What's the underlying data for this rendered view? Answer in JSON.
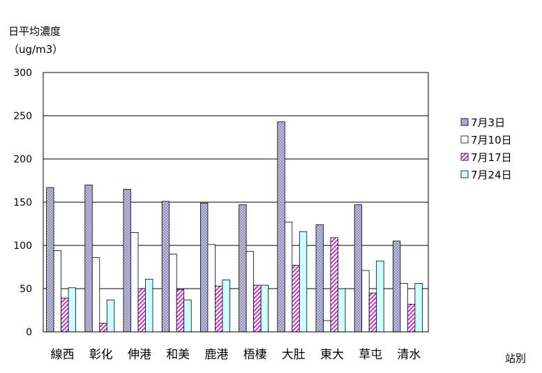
{
  "chart_data": {
    "type": "bar",
    "title": "",
    "ylabel": "日平均濃度",
    "yunit": "（ug/m3）",
    "xlabel": "站別",
    "ylim": [
      0,
      300
    ],
    "yticks": [
      0,
      50,
      100,
      150,
      200,
      250,
      300
    ],
    "grid": true,
    "legend_position": "right",
    "categories": [
      "線西",
      "彰化",
      "伸港",
      "和美",
      "鹿港",
      "梧棲",
      "大肚",
      "東大",
      "草屯",
      "清水"
    ],
    "series": [
      {
        "name": "7月3日",
        "pattern": "crosshatch",
        "color": "#b8b8d8",
        "values": [
          167,
          170,
          165,
          151,
          149,
          147,
          243,
          124,
          147,
          105
        ]
      },
      {
        "name": "7月10日",
        "pattern": "white",
        "color": "#ffffff",
        "values": [
          94,
          86,
          115,
          90,
          101,
          93,
          127,
          13,
          71,
          56
        ]
      },
      {
        "name": "7月17日",
        "pattern": "diagonal",
        "color": "#cc33cc",
        "values": [
          39,
          10,
          50,
          49,
          53,
          54,
          77,
          109,
          45,
          32
        ]
      },
      {
        "name": "7月24日",
        "pattern": "solid",
        "color": "#ccffff",
        "values": [
          51,
          37,
          61,
          37,
          60,
          54,
          116,
          50,
          82,
          56
        ]
      }
    ]
  }
}
